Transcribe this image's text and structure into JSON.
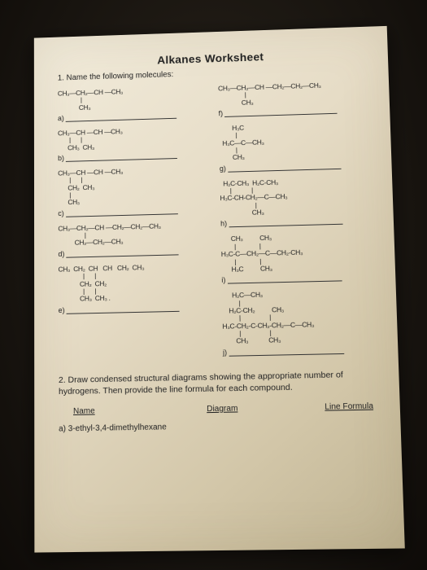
{
  "title": "Alkanes Worksheet",
  "q1_prompt": "1. Name the following molecules:",
  "left": [
    {
      "letter": "a)",
      "formula": "CH₃—CH₂—CH —CH₃\n              |\n             CH₃"
    },
    {
      "letter": "b)",
      "formula": "CH₃—CH —CH —CH₃\n       |      |\n      CH₃  CH₃"
    },
    {
      "letter": "c)",
      "formula": "CH₃—CH —CH —CH₃\n       |      |\n      CH₂  CH₃\n       |\n      CH₃"
    },
    {
      "letter": "d)",
      "formula": "CH₃—CH₂—CH —CH₂—CH₂—CH₃\n                |\n          CH₂—CH₂—CH₃"
    },
    {
      "letter": "e)",
      "formula": "CH₃  CH₂  CH   CH   CH₂  CH₃\n               |      |\n             CH₂  CH₂\n               |      |\n             CH₃  CH₃ ."
    }
  ],
  "right": [
    {
      "letter": "f)",
      "formula": "CH₃—CH₂—CH —CH₂—CH₂—CH₃\n                |\n              CH₃"
    },
    {
      "letter": "g)",
      "formula": "        H₃C\n          |\n  H₃C—C—CH₃\n          |\n        CH₃"
    },
    {
      "letter": "h)",
      "formula": "  H₂C-CH₃  H₂C-CH₃\n      |            |\nH₃C-CH-CH₂—C—CH₃\n                     |\n                   CH₃"
    },
    {
      "letter": "i)",
      "formula": "      CH₃          CH₃\n        |              |\nH₃C-C—CH₂—C—CH₂-CH₃\n        |              |\n      H₃C          CH₃"
    },
    {
      "letter": "j)",
      "formula": "      H₂C—CH₃\n          |\n    H₂C-CH₂          CH₃\n          |                 |\nH₃C-CH₂-C-CH₂-CH₂—C—CH₃\n          |                 |\n        CH₃            CH₃"
    }
  ],
  "q2_prompt": "2. Draw condensed structural diagrams showing the appropriate number of hydrogens. Then provide the line formula for each compound.",
  "headers": {
    "name": "Name",
    "diagram": "Diagram",
    "formula": "Line Formula"
  },
  "compound_a": "a) 3-ethyl-3,4-dimethylhexane"
}
